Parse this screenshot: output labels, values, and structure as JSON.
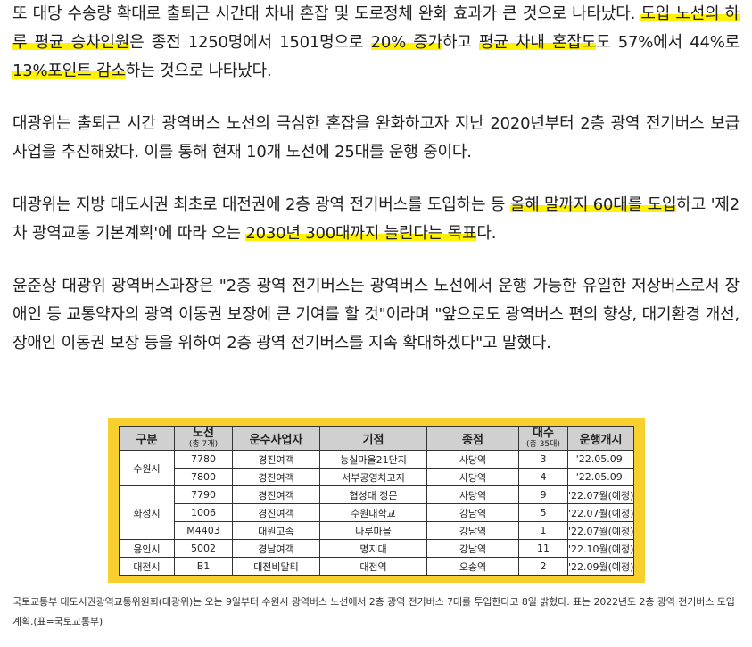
{
  "article": {
    "p1_a": "또 대당 수송량 확대로 출퇴근 시간대 차내 혼잡 및 도로정체 완화 효과가 큰 것으로 나타났다. ",
    "p1_hl1": "도입 노선의 하루 평균 승차인원",
    "p1_b": "은 종전 1250명에서 1501명으로 ",
    "p1_hl2": "20% 증가",
    "p1_c": "하고 ",
    "p1_hl3": "평균 차내 혼잡도",
    "p1_d": "도 57%에서 44%로 ",
    "p1_hl4": "13%포인트 감소",
    "p1_e": "하는 것으로 나타났다.",
    "p2": "대광위는 출퇴근 시간 광역버스 노선의 극심한 혼잡을 완화하고자 지난 2020년부터 2층 광역 전기버스 보급사업을 추진해왔다. 이를 통해 현재 10개 노선에 25대를 운행 중이다.",
    "p3_a": "대광위는 지방 대도시권 최초로 대전권에 2층 광역 전기버스를 도입하는 등 ",
    "p3_hl1": "올해 말까지 60대를 도입",
    "p3_b": "하고 '제2차 광역교통 기본계획'에 따라 오는 ",
    "p3_hl2": "2030년 300대까지 늘린다는 목표",
    "p3_c": "다.",
    "p4": "윤준상 대광위 광역버스과장은 \"2층 광역 전기버스는 광역버스 노선에서 운행 가능한 유일한 저상버스로서 장애인 등 교통약자의 광역 이동권 보장에 큰 기여를 할 것\"이라며 \"앞으로도 광역버스 편의 향상, 대기환경 개선, 장애인 이동권 보장 등을 위하여 2층 광역 전기버스를 지속 확대하겠다\"고 말했다."
  },
  "table": {
    "headers": {
      "region": "구분",
      "route_main": "노선",
      "route_sub": "(총 7개)",
      "operator": "운수사업자",
      "origin": "기점",
      "terminal": "종점",
      "count_main": "대수",
      "count_sub": "(총 35대)",
      "start": "운행개시"
    },
    "regions": {
      "suwon": "수원시",
      "hwaseong": "화성시",
      "yongin": "용인시",
      "daejeon": "대전시"
    },
    "rows": [
      {
        "route": "7780",
        "operator": "경진여객",
        "origin": "능실마을21단지",
        "terminal": "사당역",
        "count": "3",
        "start": "'22.05.09."
      },
      {
        "route": "7800",
        "operator": "경진여객",
        "origin": "서부공영차고지",
        "terminal": "사당역",
        "count": "4",
        "start": "'22.05.09."
      },
      {
        "route": "7790",
        "operator": "경진여객",
        "origin": "협성대 정문",
        "terminal": "사당역",
        "count": "9",
        "start": "'22.07월(예정)"
      },
      {
        "route": "1006",
        "operator": "경진여객",
        "origin": "수원대학교",
        "terminal": "강남역",
        "count": "5",
        "start": "'22.07월(예정)"
      },
      {
        "route": "M4403",
        "operator": "대원고속",
        "origin": "나루마을",
        "terminal": "강남역",
        "count": "1",
        "start": "'22.07월(예정)"
      },
      {
        "route": "5002",
        "operator": "경남여객",
        "origin": "명지대",
        "terminal": "강남역",
        "count": "11",
        "start": "'22.10월(예정)"
      },
      {
        "route": "B1",
        "operator": "대전비말티",
        "origin": "대전역",
        "terminal": "오송역",
        "count": "2",
        "start": "'22.09월(예정)"
      }
    ]
  },
  "caption": "국토교통부 대도시권광역교통위원회(대광위)는 오는 9일부터 수원시 광역버스 노선에서 2층 광역 전기버스 7대를 투입한다고 8일 밝혔다. 표는 2022년도 2층 광역 전기버스 도입계획.(표=국토교통부)"
}
